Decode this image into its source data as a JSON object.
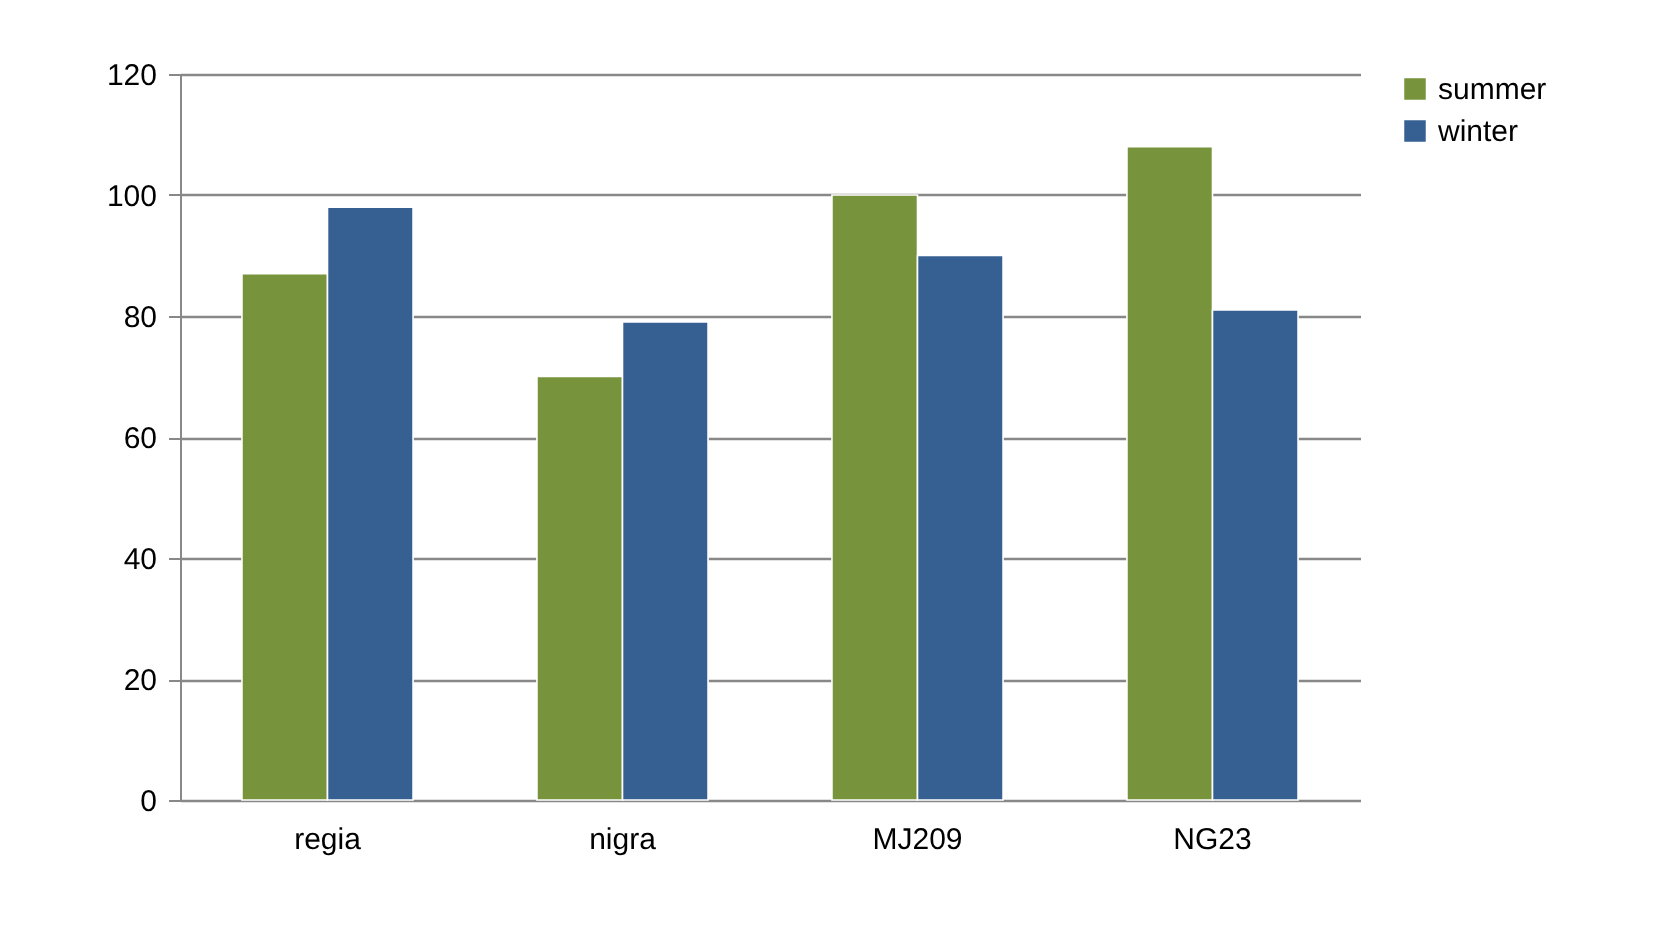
{
  "chart_data": {
    "type": "bar",
    "categories": [
      "regia",
      "nigra",
      "MJ209",
      "NG23"
    ],
    "series": [
      {
        "name": "summer",
        "color": "#77933c",
        "values": [
          87,
          70,
          100,
          108
        ]
      },
      {
        "name": "winter",
        "color": "#376092",
        "values": [
          98,
          79,
          90,
          81
        ]
      }
    ],
    "ylim": [
      0,
      120
    ],
    "yticks": [
      0,
      20,
      40,
      60,
      80,
      100,
      120
    ],
    "grid": "y",
    "legend": "right"
  }
}
